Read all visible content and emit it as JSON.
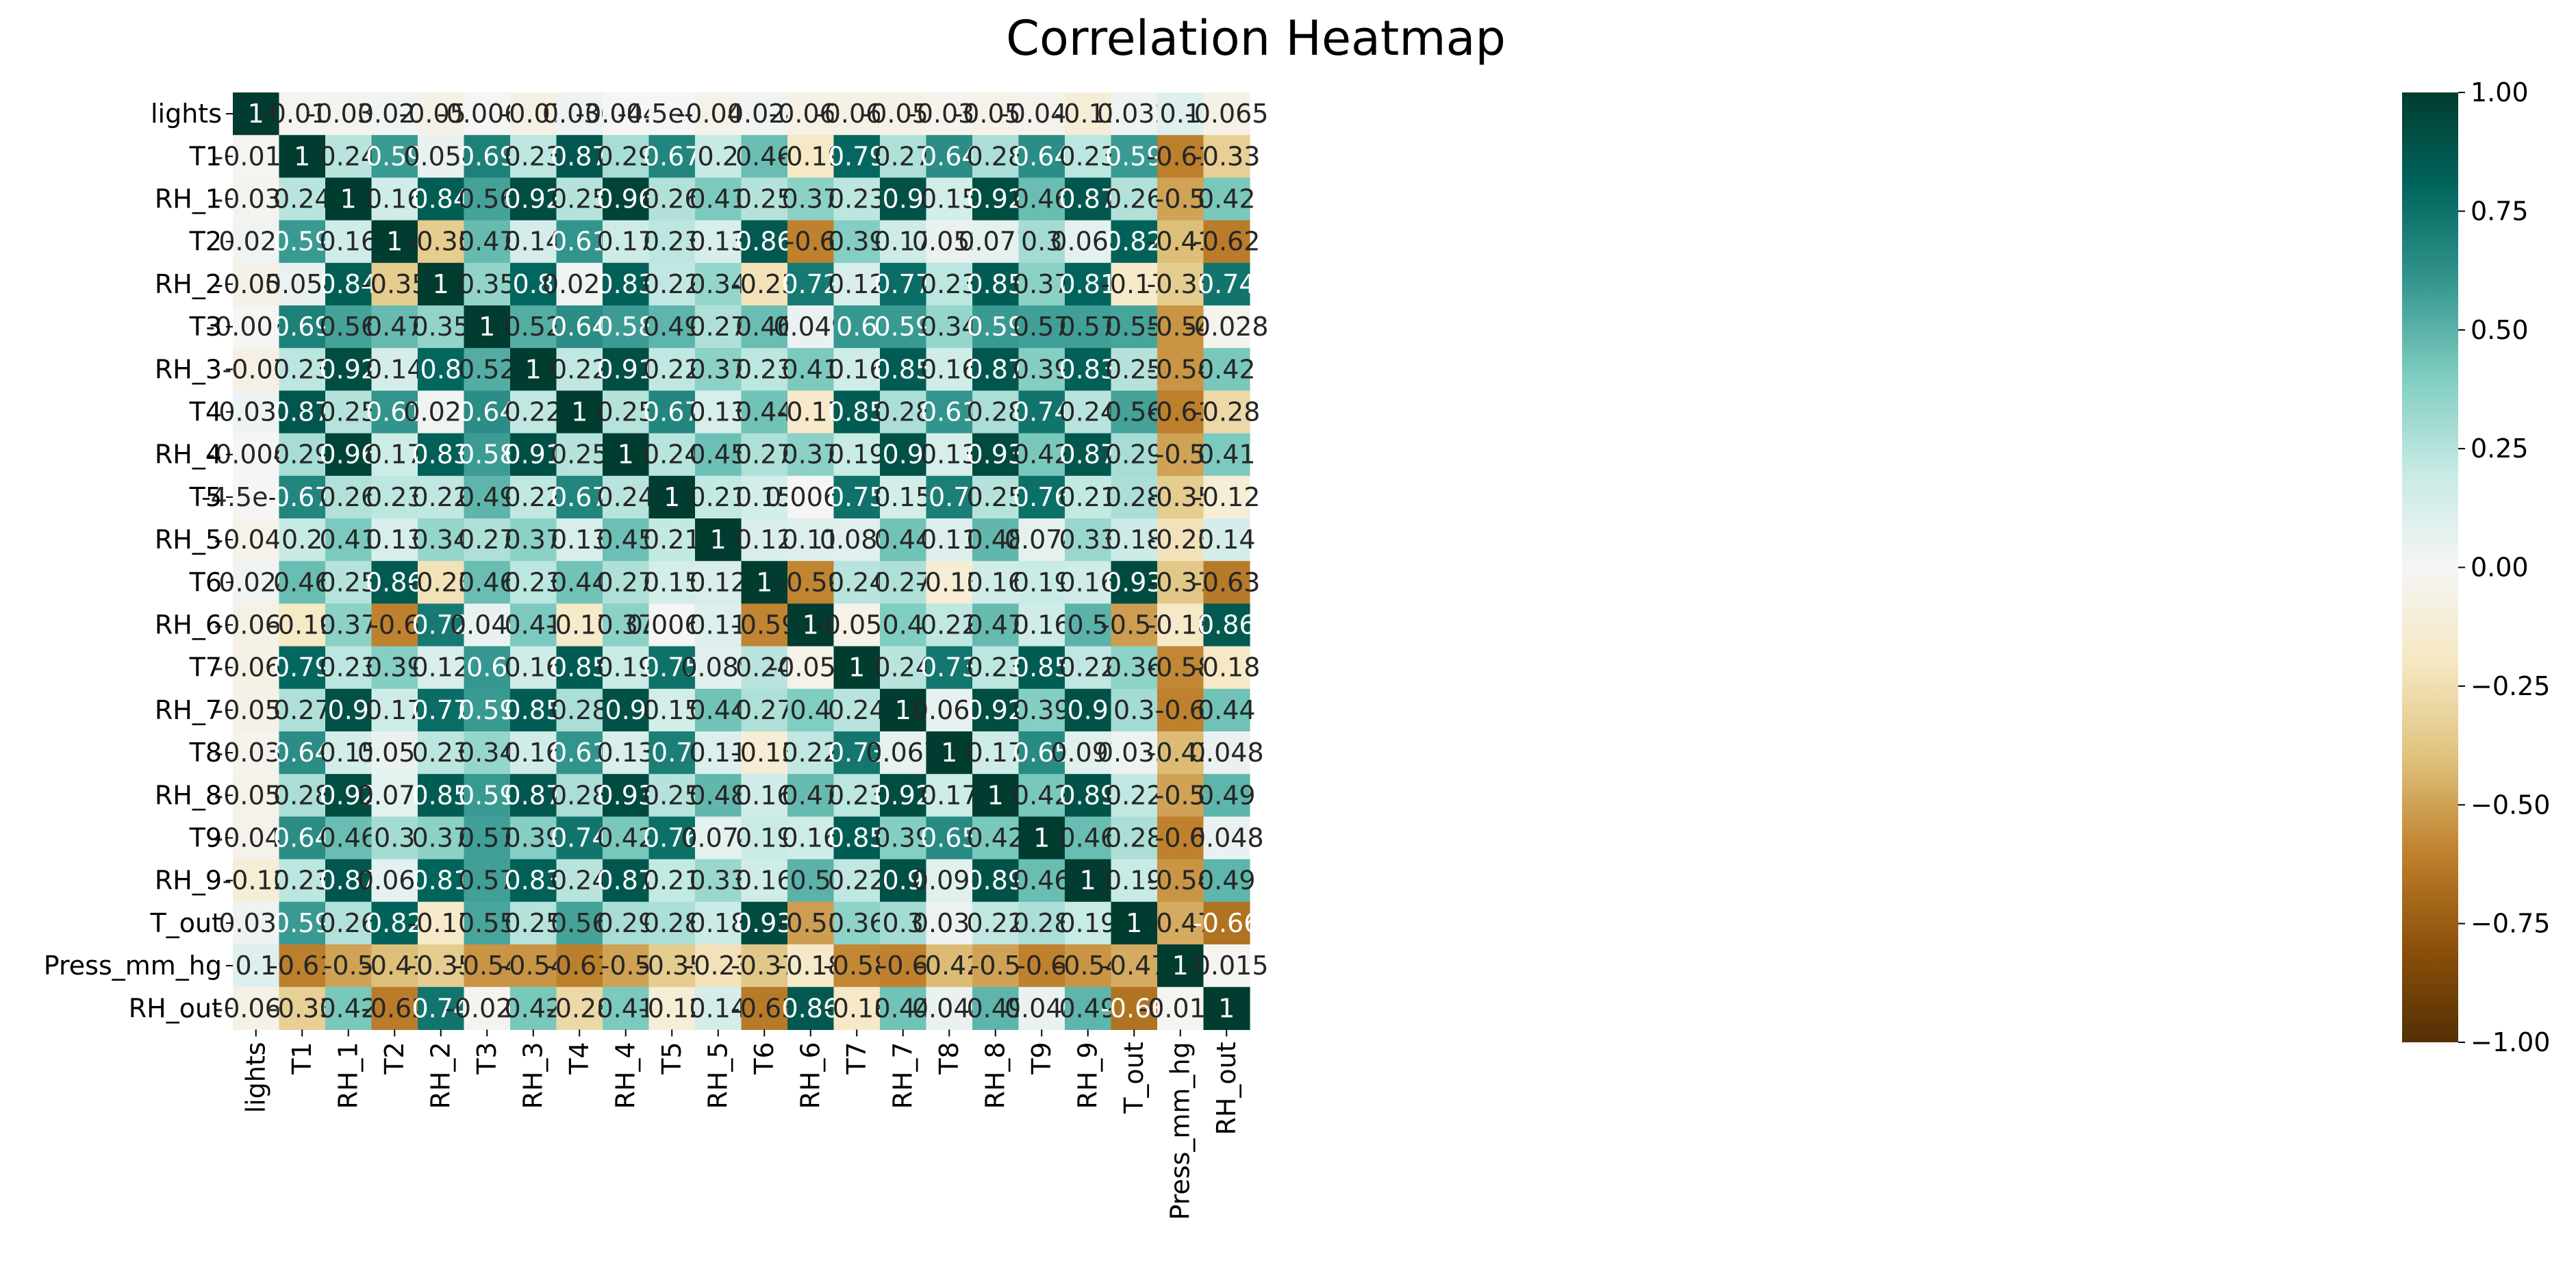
{
  "chart_data": {
    "type": "heatmap",
    "title": "Correlation Heatmap",
    "xlabel": "",
    "ylabel": "",
    "labels": [
      "lights",
      "T1",
      "RH_1",
      "T2",
      "RH_2",
      "T3",
      "RH_3",
      "T4",
      "RH_4",
      "T5",
      "RH_5",
      "T6",
      "RH_6",
      "T7",
      "RH_7",
      "T8",
      "RH_8",
      "T9",
      "RH_9",
      "T_out",
      "Press_mm_hg",
      "RH_out"
    ],
    "cells": [
      [
        "1",
        "-0.019",
        "-0.034",
        "0.025",
        "-0.056",
        "-0.0067",
        "-0.07",
        "0.036",
        "-0.0047",
        "-4.5e-05",
        "-0.048",
        "0.024",
        "-0.064",
        "-0.063",
        "-0.059",
        "-0.036",
        "-0.051",
        "-0.042",
        "-0.12",
        "0.032",
        "0.1",
        "-0.065"
      ],
      [
        "-0.019",
        "1",
        "0.24",
        "0.59",
        "0.054",
        "0.69",
        "0.23",
        "0.87",
        "0.29",
        "0.67",
        "0.2",
        "0.46",
        "-0.19",
        "0.79",
        "0.27",
        "0.64",
        "0.28",
        "0.64",
        "0.23",
        "0.59",
        "-0.61",
        "-0.33"
      ],
      [
        "-0.034",
        "0.24",
        "1",
        "0.16",
        "0.84",
        "0.56",
        "0.92",
        "0.25",
        "0.96",
        "0.26",
        "0.41",
        "0.25",
        "0.37",
        "0.23",
        "0.9",
        "0.15",
        "0.92",
        "0.46",
        "0.87",
        "0.26",
        "-0.5",
        "0.42"
      ],
      [
        "0.025",
        "0.59",
        "0.16",
        "1",
        "-0.35",
        "0.47",
        "0.14",
        "0.61",
        "0.17",
        "0.23",
        "0.13",
        "0.86",
        "-0.6",
        "0.39",
        "0.17",
        "0.052",
        "0.077",
        "0.3",
        "0.068",
        "0.82",
        "-0.41",
        "-0.62"
      ],
      [
        "-0.056",
        "0.054",
        "0.84",
        "-0.35",
        "1",
        "0.35",
        "0.8",
        "0.025",
        "0.83",
        "0.22",
        "0.34",
        "-0.23",
        "0.72",
        "0.12",
        "0.77",
        "0.23",
        "0.85",
        "0.37",
        "0.81",
        "-0.17",
        "-0.35",
        "0.74"
      ],
      [
        "-0.0067",
        "0.69",
        "0.56",
        "0.47",
        "0.35",
        "1",
        "0.52",
        "0.64",
        "0.58",
        "0.49",
        "0.27",
        "0.46",
        "0.049",
        "0.6",
        "0.59",
        "0.34",
        "0.59",
        "0.57",
        "0.57",
        "0.55",
        "-0.54",
        "-0.028"
      ],
      [
        "-0.07",
        "0.23",
        "0.92",
        "0.14",
        "0.8",
        "0.52",
        "1",
        "0.22",
        "0.91",
        "0.22",
        "0.37",
        "0.23",
        "0.41",
        "0.16",
        "0.85",
        "0.16",
        "0.87",
        "0.39",
        "0.83",
        "0.25",
        "-0.54",
        "0.42"
      ],
      [
        "0.036",
        "0.87",
        "0.25",
        "0.61",
        "0.025",
        "0.64",
        "0.22",
        "1",
        "0.25",
        "0.67",
        "0.13",
        "0.44",
        "-0.17",
        "0.85",
        "0.28",
        "0.61",
        "0.28",
        "0.74",
        "0.24",
        "0.56",
        "-0.61",
        "-0.28"
      ],
      [
        "-0.0047",
        "0.29",
        "0.96",
        "0.17",
        "0.83",
        "0.58",
        "0.91",
        "0.25",
        "1",
        "0.24",
        "0.45",
        "0.27",
        "0.37",
        "0.19",
        "0.9",
        "0.13",
        "0.93",
        "0.42",
        "0.87",
        "0.29",
        "-0.5",
        "0.41"
      ],
      [
        "-4.5e-05",
        "0.67",
        "0.26",
        "0.23",
        "0.22",
        "0.49",
        "0.22",
        "0.67",
        "0.24",
        "1",
        "0.21",
        "0.15",
        "0.0065",
        "0.75",
        "0.15",
        "0.7",
        "0.25",
        "0.76",
        "0.21",
        "0.28",
        "-0.35",
        "-0.12"
      ],
      [
        "-0.048",
        "0.2",
        "0.41",
        "0.13",
        "0.34",
        "0.27",
        "0.37",
        "0.13",
        "0.45",
        "0.21",
        "1",
        "0.12",
        "0.11",
        "0.089",
        "0.44",
        "0.11",
        "0.48",
        "0.074",
        "0.33",
        "0.18",
        "-0.23",
        "0.14"
      ],
      [
        "0.024",
        "0.46",
        "0.25",
        "0.86",
        "-0.23",
        "0.46",
        "0.23",
        "0.44",
        "0.27",
        "0.15",
        "0.12",
        "1",
        "-0.59",
        "0.24",
        "0.27",
        "-0.13",
        "0.16",
        "0.19",
        "0.16",
        "0.93",
        "-0.37",
        "-0.63"
      ],
      [
        "-0.064",
        "-0.19",
        "0.37",
        "-0.6",
        "0.72",
        "0.049",
        "0.41",
        "-0.17",
        "0.37",
        "0.0065",
        "0.11",
        "-0.59",
        "1",
        "-0.051",
        "0.4",
        "0.22",
        "0.47",
        "0.16",
        "0.5",
        "-0.51",
        "-0.18",
        "0.86"
      ],
      [
        "-0.063",
        "0.79",
        "0.23",
        "0.39",
        "0.12",
        "0.6",
        "0.16",
        "0.85",
        "0.19",
        "0.75",
        "0.089",
        "0.24",
        "-0.051",
        "1",
        "0.24",
        "0.73",
        "0.23",
        "0.85",
        "0.22",
        "0.36",
        "-0.58",
        "-0.18"
      ],
      [
        "-0.059",
        "0.27",
        "0.9",
        "0.17",
        "0.77",
        "0.59",
        "0.85",
        "0.28",
        "0.9",
        "0.15",
        "0.44",
        "0.27",
        "0.4",
        "0.24",
        "1",
        "0.067",
        "0.92",
        "0.39",
        "0.9",
        "0.3",
        "-0.6",
        "0.44"
      ],
      [
        "-0.036",
        "0.64",
        "0.15",
        "0.052",
        "0.23",
        "0.34",
        "0.16",
        "0.61",
        "0.13",
        "0.7",
        "0.11",
        "-0.13",
        "0.22",
        "0.73",
        "0.067",
        "1",
        "0.17",
        "0.65",
        "0.097",
        "0.033",
        "-0.42",
        "0.048"
      ],
      [
        "-0.051",
        "0.28",
        "0.92",
        "0.077",
        "0.85",
        "0.59",
        "0.87",
        "0.28",
        "0.93",
        "0.25",
        "0.48",
        "0.16",
        "0.47",
        "0.23",
        "0.92",
        "0.17",
        "1",
        "0.42",
        "0.89",
        "0.22",
        "-0.5",
        "0.49"
      ],
      [
        "-0.042",
        "0.64",
        "0.46",
        "0.3",
        "0.37",
        "0.57",
        "0.39",
        "0.74",
        "0.42",
        "0.76",
        "0.074",
        "0.19",
        "0.16",
        "0.85",
        "0.39",
        "0.65",
        "0.42",
        "1",
        "0.46",
        "0.28",
        "-0.6",
        "0.048"
      ],
      [
        "-0.12",
        "0.23",
        "0.87",
        "0.068",
        "0.81",
        "0.57",
        "0.83",
        "0.24",
        "0.87",
        "0.21",
        "0.33",
        "0.16",
        "0.5",
        "0.22",
        "0.9",
        "0.097",
        "0.89",
        "0.46",
        "1",
        "0.19",
        "-0.54",
        "0.49"
      ],
      [
        "0.032",
        "0.59",
        "0.26",
        "0.82",
        "-0.17",
        "0.55",
        "0.25",
        "0.56",
        "0.29",
        "0.28",
        "0.18",
        "0.93",
        "-0.51",
        "0.36",
        "0.3",
        "0.033",
        "0.22",
        "0.28",
        "0.19",
        "1",
        "-0.47",
        "-0.66"
      ],
      [
        "0.1",
        "-0.61",
        "-0.5",
        "-0.41",
        "-0.35",
        "-0.54",
        "-0.54",
        "-0.61",
        "-0.5",
        "-0.35",
        "-0.23",
        "-0.37",
        "-0.18",
        "-0.58",
        "-0.6",
        "-0.42",
        "-0.5",
        "-0.6",
        "-0.54",
        "-0.47",
        "1",
        "-0.015"
      ],
      [
        "-0.065",
        "-0.33",
        "0.42",
        "-0.62",
        "0.74",
        "-0.028",
        "0.42",
        "-0.28",
        "0.41",
        "-0.12",
        "0.14",
        "-0.63",
        "0.86",
        "-0.18",
        "0.44",
        "0.048",
        "0.49",
        "0.048",
        "0.49",
        "-0.66",
        "-0.015",
        "1"
      ]
    ],
    "colorbar": {
      "vmin": -1,
      "vmax": 1,
      "ticks": [
        "1.00",
        "0.75",
        "0.50",
        "0.25",
        "0.00",
        "−0.25",
        "−0.50",
        "−0.75",
        "−1.00"
      ],
      "colormap": "BrBG",
      "stops": [
        "#543005",
        "#8c510a",
        "#bf812d",
        "#dfc27d",
        "#f6e8c3",
        "#f5f5f5",
        "#c7eae5",
        "#80cdc1",
        "#35978f",
        "#01665e",
        "#003c30"
      ]
    }
  }
}
